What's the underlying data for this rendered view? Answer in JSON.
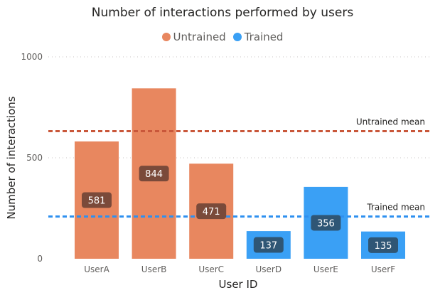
{
  "chart_data": {
    "type": "bar",
    "title": "Number of interactions performed by users",
    "xlabel": "User ID",
    "ylabel": "Number of interactions",
    "ylim": [
      0,
      1000
    ],
    "yticks": [
      "0",
      "500",
      "1000"
    ],
    "grid": true,
    "legend_position": "top-center",
    "legend": [
      {
        "name": "Untrained",
        "color": "#E8875F"
      },
      {
        "name": "Trained",
        "color": "#3AA0F5"
      }
    ],
    "categories": [
      "UserA",
      "UserB",
      "UserC",
      "UserD",
      "UserE",
      "UserF"
    ],
    "values": [
      581,
      844,
      471,
      137,
      356,
      135
    ],
    "groups": [
      "Untrained",
      "Untrained",
      "Untrained",
      "Trained",
      "Trained",
      "Trained"
    ],
    "reference_lines": [
      {
        "label": "Untrained mean",
        "value": 632,
        "color": "#C9573A"
      },
      {
        "label": "Trained mean",
        "value": 209,
        "color": "#2E90F0"
      }
    ]
  }
}
